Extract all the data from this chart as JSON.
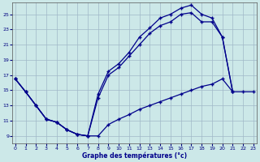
{
  "title": "Graphe des températures (°c)",
  "background_color": "#cce8e8",
  "grid_color": "#a0b8c8",
  "line_color": "#00008b",
  "x_ticks": [
    0,
    1,
    2,
    3,
    4,
    5,
    6,
    7,
    8,
    9,
    10,
    11,
    12,
    13,
    14,
    15,
    16,
    17,
    18,
    19,
    20,
    21,
    22,
    23
  ],
  "y_ticks": [
    9,
    11,
    13,
    15,
    17,
    19,
    21,
    23,
    25
  ],
  "xlim": [
    -0.3,
    23.3
  ],
  "ylim": [
    8.0,
    26.5
  ],
  "upper_x": [
    0,
    1,
    2,
    3,
    4,
    5,
    6,
    7,
    8,
    9,
    10,
    11,
    12,
    13,
    14,
    15,
    16,
    17,
    18,
    19,
    20,
    21
  ],
  "upper_y": [
    16.5,
    14.8,
    13.0,
    11.2,
    10.8,
    9.8,
    9.2,
    9.0,
    14.5,
    17.5,
    18.5,
    20.0,
    22.0,
    23.2,
    24.5,
    25.0,
    25.8,
    26.2,
    25.0,
    24.5,
    22.0,
    14.8
  ],
  "mid_x": [
    0,
    1,
    2,
    3,
    4,
    5,
    6,
    7,
    8,
    9,
    10,
    11,
    12,
    13,
    14,
    15,
    16,
    17,
    18,
    19,
    20,
    21
  ],
  "mid_y": [
    16.5,
    14.8,
    13.0,
    11.2,
    10.8,
    9.8,
    9.2,
    9.0,
    14.0,
    17.0,
    18.0,
    19.5,
    21.0,
    22.5,
    23.5,
    24.0,
    25.0,
    25.2,
    24.0,
    24.0,
    22.0,
    14.8
  ],
  "lower_x": [
    0,
    1,
    2,
    3,
    4,
    5,
    6,
    7,
    8,
    9,
    10,
    11,
    12,
    13,
    14,
    15,
    16,
    17,
    18,
    19,
    20,
    21,
    22,
    23
  ],
  "lower_y": [
    16.5,
    14.8,
    13.0,
    11.2,
    10.8,
    9.8,
    9.2,
    9.0,
    9.0,
    10.5,
    11.2,
    11.8,
    12.5,
    13.0,
    13.5,
    14.0,
    14.5,
    15.0,
    15.5,
    15.8,
    16.5,
    14.8,
    14.8,
    14.8
  ]
}
